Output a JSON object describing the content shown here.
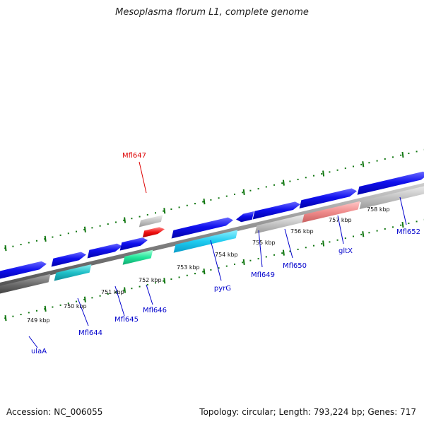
{
  "title": "Mesoplasma florum L1, complete genome",
  "footer": {
    "accession": "Accession: NC_006055",
    "summary": "Topology: circular; Length: 793,224 bp; Genes: 717"
  },
  "colors": {
    "label_default": "#0000cc",
    "label_highlight": "#dd0000",
    "tick_color": "#117711",
    "backbone": "#888888"
  },
  "scale": {
    "labels": [
      "749 kbp",
      "750 kbp",
      "751 kbp",
      "752 kbp",
      "753 kbp",
      "754 kbp",
      "755 kbp",
      "756 kbp",
      "757 kbp",
      "758 kbp"
    ]
  },
  "genes": [
    {
      "name": "ulaA",
      "color": "#0000cc"
    },
    {
      "name": "Mfl644",
      "color": "#0000cc"
    },
    {
      "name": "Mfl645",
      "color": "#0000cc"
    },
    {
      "name": "Mfl646",
      "color": "#0000cc"
    },
    {
      "name": "Mfl647",
      "color": "#dd0000"
    },
    {
      "name": "pyrG",
      "color": "#0000cc"
    },
    {
      "name": "Mfl649",
      "color": "#0000cc"
    },
    {
      "name": "Mfl650",
      "color": "#0000cc"
    },
    {
      "name": "gltX",
      "color": "#0000cc"
    },
    {
      "name": "Mfl652",
      "color": "#0000cc"
    }
  ]
}
